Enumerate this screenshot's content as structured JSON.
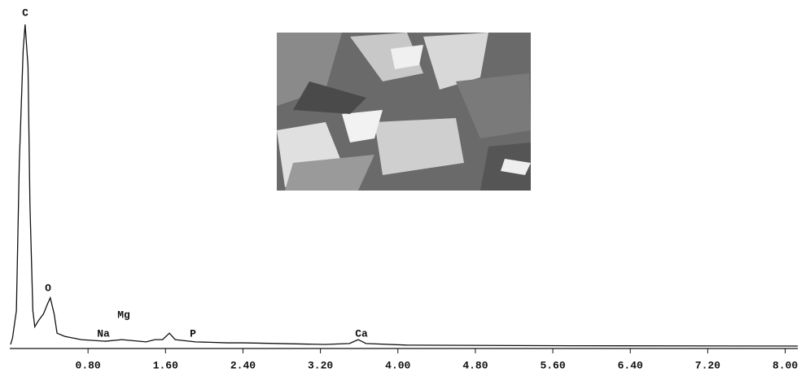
{
  "chart_data": {
    "type": "line",
    "x": [
      0,
      0.02,
      0.06,
      0.09,
      0.13,
      0.15,
      0.18,
      0.2,
      0.23,
      0.25,
      0.29,
      0.34,
      0.38,
      0.41,
      0.45,
      0.48,
      0.56,
      0.73,
      0.98,
      1.15,
      1.4,
      1.49,
      1.57,
      1.64,
      1.7,
      1.91,
      2.24,
      2.41,
      3.25,
      3.5,
      3.59,
      3.67,
      4.09,
      5.77,
      8.13
    ],
    "series": [
      {
        "color": "#111111",
        "values": [
          0.5,
          2.5,
          11,
          57,
          92,
          100,
          87,
          44,
          11,
          6,
          8,
          10,
          13,
          15,
          10,
          4,
          3,
          2,
          1.5,
          2,
          1.3,
          2,
          2,
          4,
          2,
          1.3,
          1,
          1,
          0.5,
          0.8,
          2,
          0.8,
          0.3,
          0.1,
          0
        ]
      }
    ],
    "annotations": [
      "C",
      "O",
      "Na",
      "Mg",
      "P",
      "Ca"
    ],
    "xlim": [
      0,
      8.13
    ],
    "ylim": [
      0,
      100
    ],
    "xticks": [
      {
        "value": 0.8,
        "label": "0.80"
      },
      {
        "value": 1.6,
        "label": "1.60"
      },
      {
        "value": 2.4,
        "label": "2.40"
      },
      {
        "value": 3.2,
        "label": "3.20"
      },
      {
        "value": 4.0,
        "label": "4.00"
      },
      {
        "value": 4.8,
        "label": "4.80"
      },
      {
        "value": 5.6,
        "label": "5.60"
      },
      {
        "value": 6.4,
        "label": "6.40"
      },
      {
        "value": 7.2,
        "label": "7.20"
      },
      {
        "value": 8.0,
        "label": "8.00"
      }
    ]
  }
}
